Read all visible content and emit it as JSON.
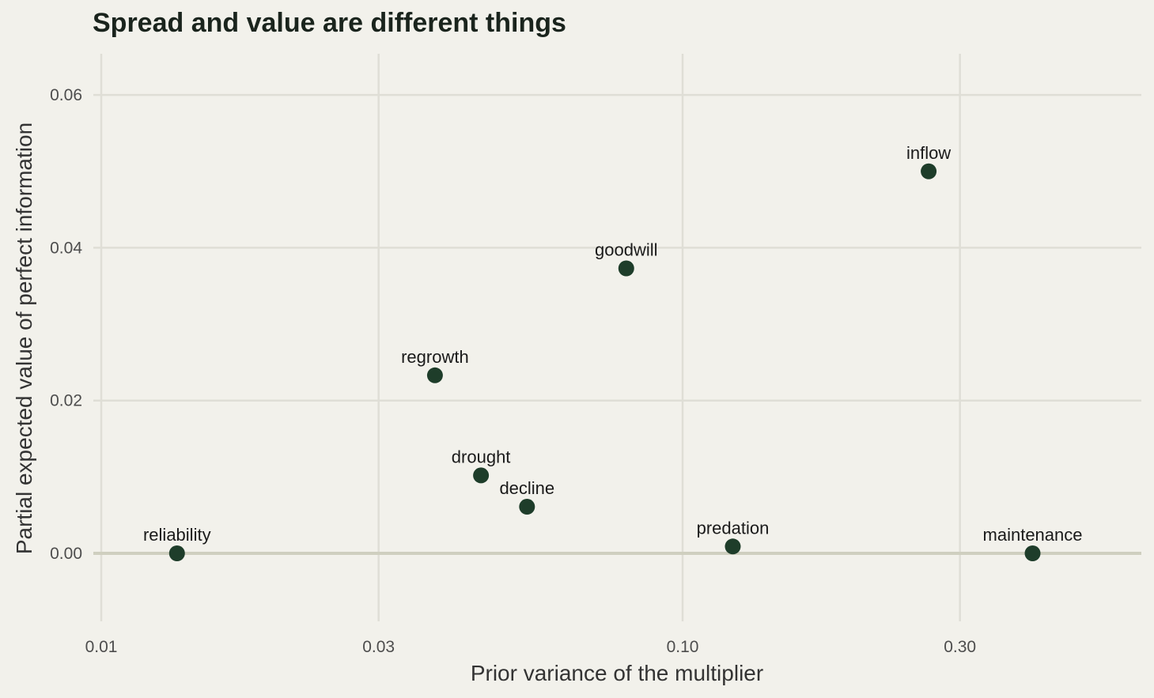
{
  "chart_data": {
    "type": "scatter",
    "title": "Spread and value are different things",
    "xlabel": "Prior variance of the multiplier",
    "ylabel": "Partial expected value of perfect information",
    "x_scale": "log",
    "xlim": [
      0.01,
      0.6
    ],
    "ylim": [
      -0.009,
      0.0655
    ],
    "x_ticks": [
      {
        "value": 0.01,
        "label": "0.01"
      },
      {
        "value": 0.03,
        "label": "0.03"
      },
      {
        "value": 0.1,
        "label": "0.10"
      },
      {
        "value": 0.3,
        "label": "0.30"
      }
    ],
    "y_ticks": [
      {
        "value": 0.0,
        "label": "0.00"
      },
      {
        "value": 0.02,
        "label": "0.02"
      },
      {
        "value": 0.04,
        "label": "0.04"
      },
      {
        "value": 0.06,
        "label": "0.06"
      }
    ],
    "grid": true,
    "reference_line_y": 0,
    "points": [
      {
        "label": "reliability",
        "x": 0.0135,
        "y": 0.0
      },
      {
        "label": "regrowth",
        "x": 0.0375,
        "y": 0.0233
      },
      {
        "label": "drought",
        "x": 0.045,
        "y": 0.0102
      },
      {
        "label": "decline",
        "x": 0.054,
        "y": 0.0061
      },
      {
        "label": "goodwill",
        "x": 0.08,
        "y": 0.0373
      },
      {
        "label": "predation",
        "x": 0.122,
        "y": 0.0009
      },
      {
        "label": "inflow",
        "x": 0.265,
        "y": 0.05
      },
      {
        "label": "maintenance",
        "x": 0.4,
        "y": 0.0
      }
    ],
    "colors": {
      "background": "#f2f1eb",
      "grid": "#dfded6",
      "zero_line": "#cfcfbf",
      "point": "#1e3d2a"
    }
  }
}
